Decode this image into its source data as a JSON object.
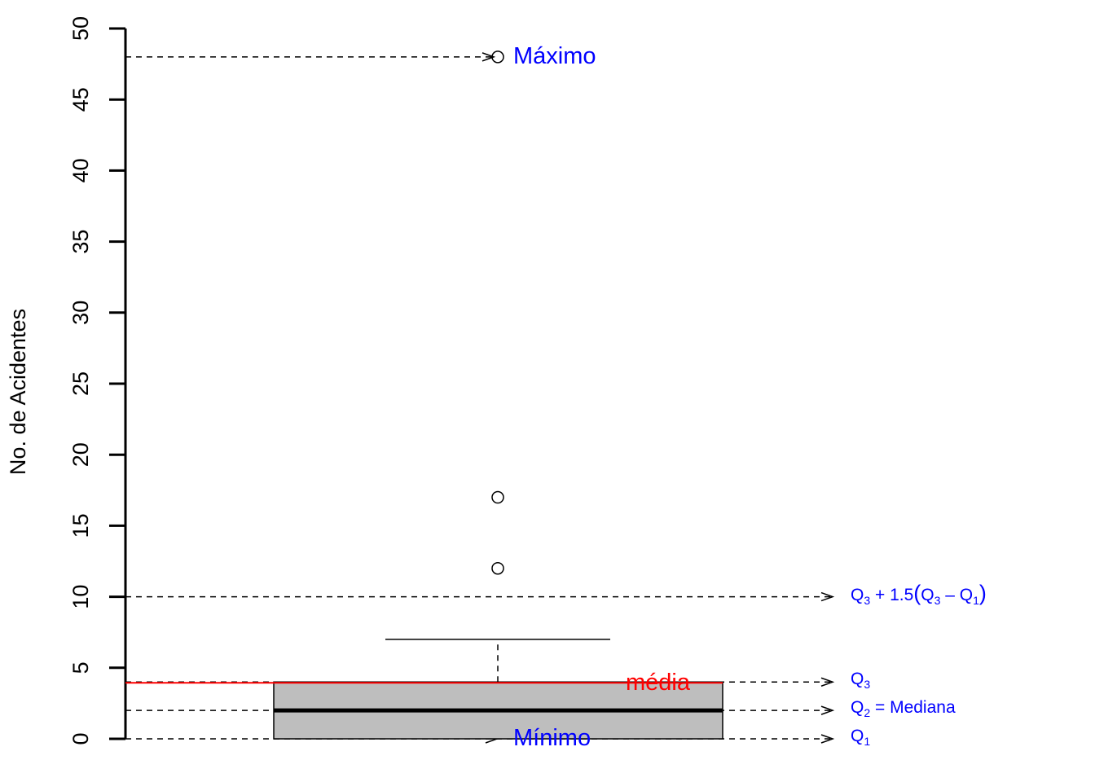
{
  "chart_data": {
    "type": "boxplot",
    "ylabel": "No. de Acidentes",
    "xlabel": "",
    "title": "",
    "ylim": [
      0,
      50
    ],
    "yticks": [
      0,
      5,
      10,
      15,
      20,
      25,
      30,
      35,
      40,
      45,
      50
    ],
    "grid": false,
    "box": {
      "q1": 0,
      "median": 2,
      "q3": 4,
      "whisker_low": 0,
      "whisker_high": 7,
      "mean": 3.94,
      "fill": "#bebebe",
      "outliers": [
        12,
        17,
        48
      ]
    },
    "fence_upper": 10,
    "colors": {
      "annotation": "#0000ff",
      "mean": "#ff0000",
      "box": "#bebebe"
    },
    "annotations": {
      "maximo": {
        "text": "Máximo",
        "value": 48
      },
      "minimo": {
        "text": "Mínimo",
        "value": 0
      },
      "media": {
        "text": "média",
        "value": 3.94
      },
      "q3": {
        "label": "Q",
        "sub": "3",
        "value": 4
      },
      "q2": {
        "label": "Q",
        "sub": "2",
        "suffix": " = Mediana",
        "value": 2
      },
      "q1": {
        "label": "Q",
        "sub": "1",
        "value": 0
      },
      "fence": {
        "part1": "Q",
        "sub1": "3",
        "part2": " + 1.5",
        "paren_open": "(",
        "part3": "Q",
        "sub3": "3",
        "part4": " – Q",
        "sub4": "1",
        "paren_close": ")",
        "value": 10
      }
    }
  }
}
